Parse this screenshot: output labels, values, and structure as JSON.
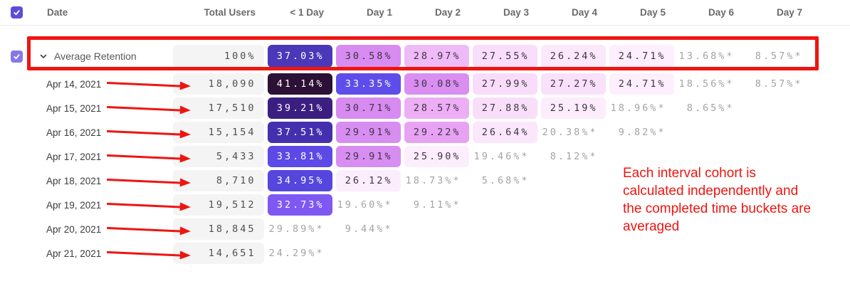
{
  "colors": {
    "accent": "#5b4edb",
    "accent-light": "#8478e8",
    "annotation-red": "#ee1510",
    "muted-text": "#a3a3a3",
    "total-bg": "#f4f4f4",
    "header-text": "#6a6a6a"
  },
  "table": {
    "columns": [
      "Date",
      "Total Users",
      "< 1 Day",
      "Day 1",
      "Day 2",
      "Day 3",
      "Day 4",
      "Day 5",
      "Day 6",
      "Day 7"
    ],
    "average_row": {
      "label": "Average Retention",
      "total": "100%",
      "cells": [
        {
          "t": "37.03%",
          "bg": "#4a38b8",
          "fg": "#ffffff"
        },
        {
          "t": "30.58%",
          "bg": "#d88cf1",
          "fg": "#3e3544"
        },
        {
          "t": "28.97%",
          "bg": "#eebaf7",
          "fg": "#3e3544"
        },
        {
          "t": "27.55%",
          "bg": "#f9ddfa",
          "fg": "#3e3544"
        },
        {
          "t": "26.24%",
          "bg": "#fbe9fb",
          "fg": "#3e3544"
        },
        {
          "t": "24.71%",
          "bg": "#fdeffd",
          "fg": "#3e3544"
        },
        {
          "t": "13.68%*"
        },
        {
          "t": "8.57%*"
        }
      ]
    },
    "rows": [
      {
        "date": "Apr 14, 2021",
        "total": "18,090",
        "cells": [
          {
            "t": "41.14%",
            "bg": "#2d1035",
            "fg": "#ffffff"
          },
          {
            "t": "33.35%",
            "bg": "#5f4deb",
            "fg": "#ffffff"
          },
          {
            "t": "30.08%",
            "bg": "#da8ef2",
            "fg": "#3e3544"
          },
          {
            "t": "27.99%",
            "bg": "#f8dcfa",
            "fg": "#3e3544"
          },
          {
            "t": "27.27%",
            "bg": "#f9e0fb",
            "fg": "#3e3544"
          },
          {
            "t": "24.71%",
            "bg": "#fdeffd",
            "fg": "#3e3544"
          },
          {
            "t": "18.56%*"
          },
          {
            "t": "8.57%*"
          }
        ]
      },
      {
        "date": "Apr 15, 2021",
        "total": "17,510",
        "cells": [
          {
            "t": "39.21%",
            "bg": "#3b1f80",
            "fg": "#ffffff"
          },
          {
            "t": "30.71%",
            "bg": "#d78bf0",
            "fg": "#3e3544"
          },
          {
            "t": "28.57%",
            "bg": "#edaef6",
            "fg": "#3e3544"
          },
          {
            "t": "27.88%",
            "bg": "#f9defa",
            "fg": "#3e3544"
          },
          {
            "t": "25.19%",
            "bg": "#fcecfc",
            "fg": "#3e3544"
          },
          {
            "t": "18.96%*"
          },
          {
            "t": "8.65%*"
          }
        ]
      },
      {
        "date": "Apr 16, 2021",
        "total": "15,154",
        "cells": [
          {
            "t": "37.51%",
            "bg": "#4430ae",
            "fg": "#ffffff"
          },
          {
            "t": "29.91%",
            "bg": "#d88df1",
            "fg": "#3e3544"
          },
          {
            "t": "29.22%",
            "bg": "#e8a2f4",
            "fg": "#3e3544"
          },
          {
            "t": "26.64%",
            "bg": "#fbe6fb",
            "fg": "#3e3544"
          },
          {
            "t": "20.38%*"
          },
          {
            "t": "9.82%*"
          }
        ]
      },
      {
        "date": "Apr 17, 2021",
        "total": "5,433",
        "cells": [
          {
            "t": "33.81%",
            "bg": "#5d49e6",
            "fg": "#ffffff"
          },
          {
            "t": "29.91%",
            "bg": "#d88df1",
            "fg": "#3e3544"
          },
          {
            "t": "25.90%",
            "bg": "#fdeefd",
            "fg": "#3e3544"
          },
          {
            "t": "19.46%*"
          },
          {
            "t": "8.12%*"
          }
        ]
      },
      {
        "date": "Apr 18, 2021",
        "total": "8,710",
        "cells": [
          {
            "t": "34.95%",
            "bg": "#5646dd",
            "fg": "#ffffff"
          },
          {
            "t": "26.12%",
            "bg": "#fcedfc",
            "fg": "#3e3544"
          },
          {
            "t": "18.73%*"
          },
          {
            "t": "5.68%*"
          }
        ]
      },
      {
        "date": "Apr 19, 2021",
        "total": "19,512",
        "cells": [
          {
            "t": "32.73%",
            "bg": "#7f58f3",
            "fg": "#ffffff"
          },
          {
            "t": "19.60%*"
          },
          {
            "t": "9.11%*"
          }
        ]
      },
      {
        "date": "Apr 20, 2021",
        "total": "18,845",
        "cells": [
          {
            "t": "29.89%*"
          },
          {
            "t": "9.44%*"
          }
        ]
      },
      {
        "date": "Apr 21, 2021",
        "total": "14,651",
        "cells": [
          {
            "t": "24.29%*"
          }
        ]
      }
    ]
  },
  "annotation": {
    "note_lines": [
      "Each interval cohort is",
      "calculated independently and",
      "the completed time buckets are",
      "averaged"
    ]
  }
}
